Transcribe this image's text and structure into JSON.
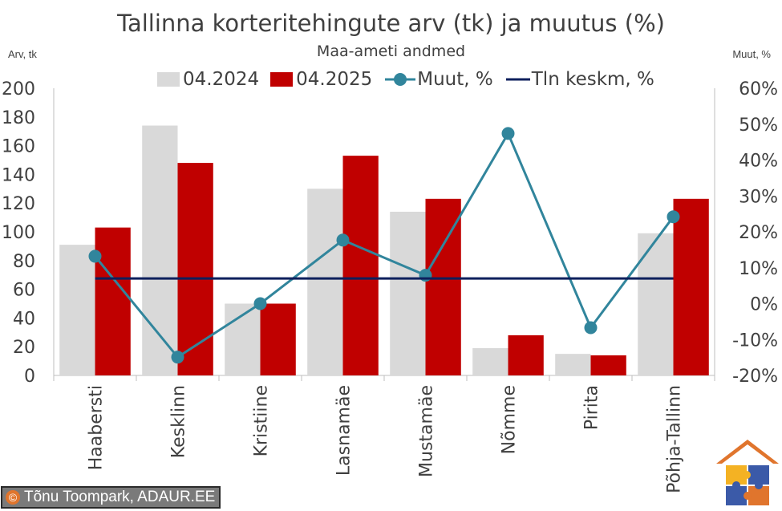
{
  "chart_data": {
    "type": "bar",
    "title": "Tallinna korteritehingute arv (tk) ja muutus (%)",
    "subtitle": "Maa-ameti andmed",
    "y_left_label": "Arv, tk",
    "y_right_label": "Muut, %",
    "categories": [
      "Haabersti",
      "Kesklinn",
      "Kristiine",
      "Lasnamäe",
      "Mustamäe",
      "Nõmme",
      "Pirita",
      "Põhja-Tallinn"
    ],
    "series": [
      {
        "name": "04.2024",
        "type": "bar",
        "axis": "left",
        "color": "#d9d9d9",
        "values": [
          91,
          174,
          50,
          130,
          114,
          19,
          15,
          99
        ]
      },
      {
        "name": "04.2025",
        "type": "bar",
        "axis": "left",
        "color": "#c00000",
        "values": [
          103,
          148,
          50,
          153,
          123,
          28,
          14,
          123
        ]
      },
      {
        "name": "Muut, %",
        "type": "line-markers",
        "axis": "right",
        "color": "#31859c",
        "values": [
          13.2,
          -14.9,
          0.0,
          17.7,
          7.9,
          47.4,
          -6.7,
          24.2
        ]
      },
      {
        "name": "Tln keskm, %",
        "type": "line",
        "axis": "right",
        "color": "#0d1f5c",
        "values": [
          7.0,
          7.0,
          7.0,
          7.0,
          7.0,
          7.0,
          7.0,
          7.0
        ]
      }
    ],
    "ylim_left": [
      0,
      200
    ],
    "yticks_left": [
      "0",
      "20",
      "40",
      "60",
      "80",
      "100",
      "120",
      "140",
      "160",
      "180",
      "200"
    ],
    "ylim_right": [
      -20,
      60
    ],
    "yticks_right": [
      "-20%",
      "-10%",
      "0%",
      "10%",
      "20%",
      "30%",
      "40%",
      "50%",
      "60%"
    ],
    "legend_position": "top",
    "grid": false
  },
  "credit": "Tõnu Toompark, ADAUR.EE",
  "credit_symbol": "©"
}
